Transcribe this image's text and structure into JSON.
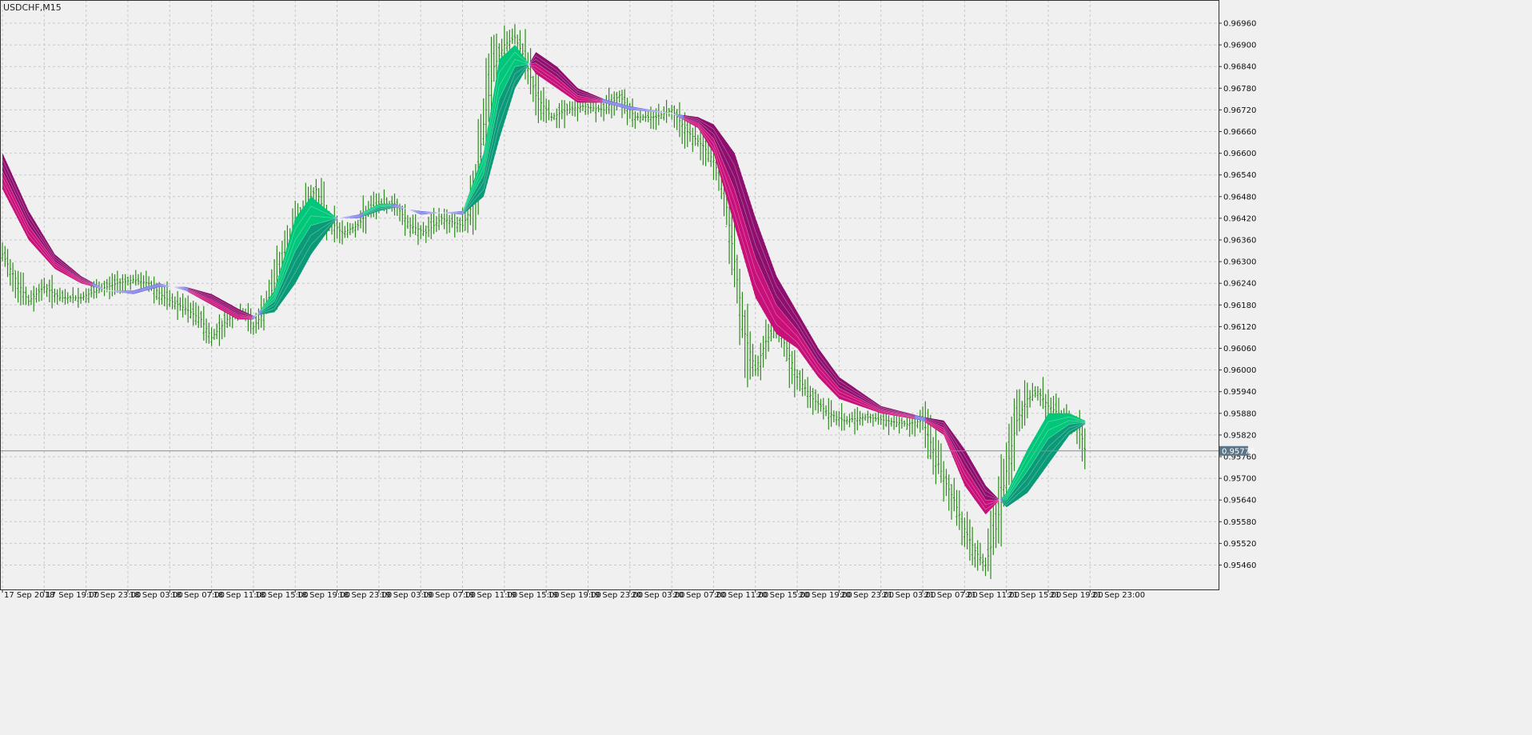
{
  "window": {
    "title": "USDCHF,M15"
  },
  "colors": {
    "background": "#f0f0f0",
    "grid": "#c8c8c8",
    "bars": "#2e8b1e",
    "bear_ribbon": "#c8107a",
    "bear_ribbon_dark": "#8e0f6e",
    "bull_ribbon": "#00c77a",
    "bull_ribbon_dark": "#0a9a78",
    "transition_ribbon": "#5a5ae0",
    "current_price_line": "#7a8ea0",
    "current_price_box": "#5a7488"
  },
  "chart_data": {
    "type": "line",
    "symbol": "USDCHF",
    "timeframe": "M15",
    "current_price": "0.95776",
    "ylim": [
      0.954,
      0.9702
    ],
    "y_ticks": [
      "0.96960",
      "0.96900",
      "0.96840",
      "0.96780",
      "0.96720",
      "0.96660",
      "0.96600",
      "0.96540",
      "0.96480",
      "0.96420",
      "0.96360",
      "0.96300",
      "0.96240",
      "0.96180",
      "0.96120",
      "0.96060",
      "0.96000",
      "0.95940",
      "0.95880",
      "0.95820",
      "0.95760",
      "0.95700",
      "0.95640",
      "0.95580",
      "0.95520",
      "0.95460"
    ],
    "x_ticks": [
      "17 Sep 2018",
      "17 Sep 19:00",
      "17 Sep 23:00",
      "18 Sep 03:00",
      "18 Sep 07:00",
      "18 Sep 11:00",
      "18 Sep 15:00",
      "18 Sep 19:00",
      "18 Sep 23:00",
      "19 Sep 03:00",
      "19 Sep 07:00",
      "19 Sep 11:00",
      "19 Sep 15:00",
      "19 Sep 19:00",
      "19 Sep 23:00",
      "20 Sep 03:00",
      "20 Sep 07:00",
      "20 Sep 11:00",
      "20 Sep 15:00",
      "20 Sep 19:00",
      "20 Sep 23:00",
      "21 Sep 03:00",
      "21 Sep 07:00",
      "21 Sep 11:00",
      "21 Sep 15:00",
      "21 Sep 19:00",
      "21 Sep 23:00"
    ],
    "x_tick_bar_index": [
      0,
      16,
      32,
      48,
      64,
      80,
      96,
      112,
      128,
      144,
      160,
      176,
      192,
      208,
      224,
      240,
      256,
      272,
      288,
      304,
      320,
      336,
      352,
      368,
      384,
      400,
      416
    ],
    "bars_per_tick": 16,
    "total_bars": 423,
    "ribbon_fast": [
      [
        0,
        0.965
      ],
      [
        10,
        0.9636
      ],
      [
        20,
        0.9628
      ],
      [
        30,
        0.9624
      ],
      [
        40,
        0.9622
      ],
      [
        50,
        0.9622
      ],
      [
        60,
        0.9624
      ],
      [
        70,
        0.9622
      ],
      [
        80,
        0.9618
      ],
      [
        90,
        0.9614
      ],
      [
        96,
        0.9614
      ],
      [
        104,
        0.9622
      ],
      [
        112,
        0.9642
      ],
      [
        118,
        0.9648
      ],
      [
        128,
        0.9642
      ],
      [
        136,
        0.9643
      ],
      [
        144,
        0.9646
      ],
      [
        150,
        0.9646
      ],
      [
        160,
        0.9643
      ],
      [
        176,
        0.9644
      ],
      [
        184,
        0.966
      ],
      [
        190,
        0.9686
      ],
      [
        196,
        0.969
      ],
      [
        204,
        0.9682
      ],
      [
        212,
        0.9678
      ],
      [
        220,
        0.9674
      ],
      [
        230,
        0.9674
      ],
      [
        240,
        0.9672
      ],
      [
        256,
        0.9671
      ],
      [
        266,
        0.9667
      ],
      [
        272,
        0.966
      ],
      [
        280,
        0.964
      ],
      [
        288,
        0.962
      ],
      [
        296,
        0.961
      ],
      [
        304,
        0.9606
      ],
      [
        312,
        0.9598
      ],
      [
        320,
        0.9592
      ],
      [
        336,
        0.9588
      ],
      [
        352,
        0.9586
      ],
      [
        360,
        0.9582
      ],
      [
        368,
        0.9568
      ],
      [
        376,
        0.956
      ],
      [
        384,
        0.9566
      ],
      [
        392,
        0.9578
      ],
      [
        400,
        0.9588
      ],
      [
        408,
        0.9588
      ],
      [
        414,
        0.9586
      ]
    ],
    "ribbon_slow": [
      [
        0,
        0.966
      ],
      [
        10,
        0.9644
      ],
      [
        20,
        0.9632
      ],
      [
        30,
        0.9626
      ],
      [
        40,
        0.9622
      ],
      [
        50,
        0.9621
      ],
      [
        60,
        0.9623
      ],
      [
        70,
        0.9623
      ],
      [
        80,
        0.9621
      ],
      [
        90,
        0.9617
      ],
      [
        96,
        0.9615
      ],
      [
        104,
        0.9616
      ],
      [
        112,
        0.9624
      ],
      [
        118,
        0.9632
      ],
      [
        128,
        0.9642
      ],
      [
        136,
        0.9642
      ],
      [
        144,
        0.9644
      ],
      [
        150,
        0.9645
      ],
      [
        160,
        0.9644
      ],
      [
        176,
        0.9643
      ],
      [
        184,
        0.9648
      ],
      [
        190,
        0.9664
      ],
      [
        196,
        0.9678
      ],
      [
        204,
        0.9688
      ],
      [
        212,
        0.9684
      ],
      [
        220,
        0.9678
      ],
      [
        230,
        0.9675
      ],
      [
        240,
        0.9673
      ],
      [
        256,
        0.9671
      ],
      [
        266,
        0.967
      ],
      [
        272,
        0.9668
      ],
      [
        280,
        0.966
      ],
      [
        288,
        0.9642
      ],
      [
        296,
        0.9626
      ],
      [
        304,
        0.9616
      ],
      [
        312,
        0.9606
      ],
      [
        320,
        0.9598
      ],
      [
        336,
        0.959
      ],
      [
        352,
        0.9587
      ],
      [
        360,
        0.9586
      ],
      [
        368,
        0.9578
      ],
      [
        376,
        0.9568
      ],
      [
        384,
        0.9562
      ],
      [
        392,
        0.9566
      ],
      [
        400,
        0.9574
      ],
      [
        408,
        0.9582
      ],
      [
        414,
        0.9585
      ]
    ],
    "price_path": [
      [
        0,
        0.9632
      ],
      [
        6,
        0.9624
      ],
      [
        10,
        0.9619
      ],
      [
        16,
        0.9623
      ],
      [
        22,
        0.962
      ],
      [
        30,
        0.962
      ],
      [
        36,
        0.9622
      ],
      [
        44,
        0.9624
      ],
      [
        50,
        0.9625
      ],
      [
        56,
        0.9624
      ],
      [
        62,
        0.962
      ],
      [
        70,
        0.9617
      ],
      [
        76,
        0.9614
      ],
      [
        80,
        0.9609
      ],
      [
        86,
        0.9614
      ],
      [
        92,
        0.9616
      ],
      [
        96,
        0.9612
      ],
      [
        100,
        0.9616
      ],
      [
        104,
        0.9624
      ],
      [
        108,
        0.9632
      ],
      [
        112,
        0.964
      ],
      [
        116,
        0.9646
      ],
      [
        120,
        0.965
      ],
      [
        124,
        0.9642
      ],
      [
        130,
        0.9638
      ],
      [
        136,
        0.964
      ],
      [
        140,
        0.9644
      ],
      [
        144,
        0.9646
      ],
      [
        150,
        0.9646
      ],
      [
        156,
        0.964
      ],
      [
        162,
        0.9638
      ],
      [
        168,
        0.9642
      ],
      [
        176,
        0.964
      ],
      [
        180,
        0.9646
      ],
      [
        184,
        0.9668
      ],
      [
        188,
        0.9684
      ],
      [
        192,
        0.969
      ],
      [
        196,
        0.9692
      ],
      [
        200,
        0.9686
      ],
      [
        204,
        0.9676
      ],
      [
        210,
        0.967
      ],
      [
        216,
        0.9672
      ],
      [
        222,
        0.9673
      ],
      [
        230,
        0.9672
      ],
      [
        236,
        0.9676
      ],
      [
        242,
        0.967
      ],
      [
        250,
        0.967
      ],
      [
        256,
        0.9672
      ],
      [
        262,
        0.9666
      ],
      [
        268,
        0.9662
      ],
      [
        272,
        0.9658
      ],
      [
        276,
        0.965
      ],
      [
        280,
        0.963
      ],
      [
        284,
        0.961
      ],
      [
        288,
        0.96
      ],
      [
        292,
        0.9608
      ],
      [
        296,
        0.9612
      ],
      [
        300,
        0.9606
      ],
      [
        304,
        0.9598
      ],
      [
        310,
        0.9592
      ],
      [
        316,
        0.9588
      ],
      [
        322,
        0.9586
      ],
      [
        330,
        0.9587
      ],
      [
        338,
        0.9586
      ],
      [
        346,
        0.9585
      ],
      [
        352,
        0.9586
      ],
      [
        356,
        0.9578
      ],
      [
        360,
        0.957
      ],
      [
        364,
        0.9564
      ],
      [
        368,
        0.9556
      ],
      [
        372,
        0.955
      ],
      [
        376,
        0.9546
      ],
      [
        380,
        0.9556
      ],
      [
        384,
        0.9572
      ],
      [
        388,
        0.9586
      ],
      [
        392,
        0.9592
      ],
      [
        396,
        0.9594
      ],
      [
        400,
        0.959
      ],
      [
        404,
        0.9588
      ],
      [
        408,
        0.9586
      ],
      [
        412,
        0.9584
      ],
      [
        414,
        0.9578
      ]
    ]
  }
}
